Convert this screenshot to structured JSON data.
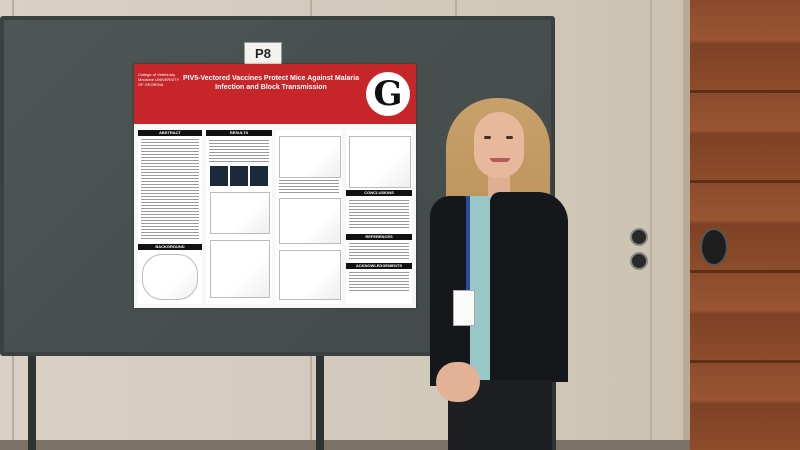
{
  "scene": {
    "booth_tag": "P8",
    "poster": {
      "title": "PIV5-Vectored Vaccines Protect Mice Against Malaria Infection and Block Transmission",
      "college": "College of Veterinary Medicine UNIVERSITY OF GEORGIA",
      "logo_letter": "G",
      "sections": {
        "abstract": "ABSTRACT",
        "results": "RESULTS",
        "background": "BACKGROUND",
        "conclusions": "CONCLUSIONS",
        "references": "REFERENCES",
        "acknowledgements": "ACKNOWLEDGEMENTS"
      },
      "header_color": "#c6262a"
    },
    "colors": {
      "board": "#4a5050",
      "wall": "#d3cbbd",
      "wood": "#8a4a2a",
      "blazer": "#15171a",
      "shirt": "#98c6c9",
      "hair": "#c8a06a"
    }
  }
}
